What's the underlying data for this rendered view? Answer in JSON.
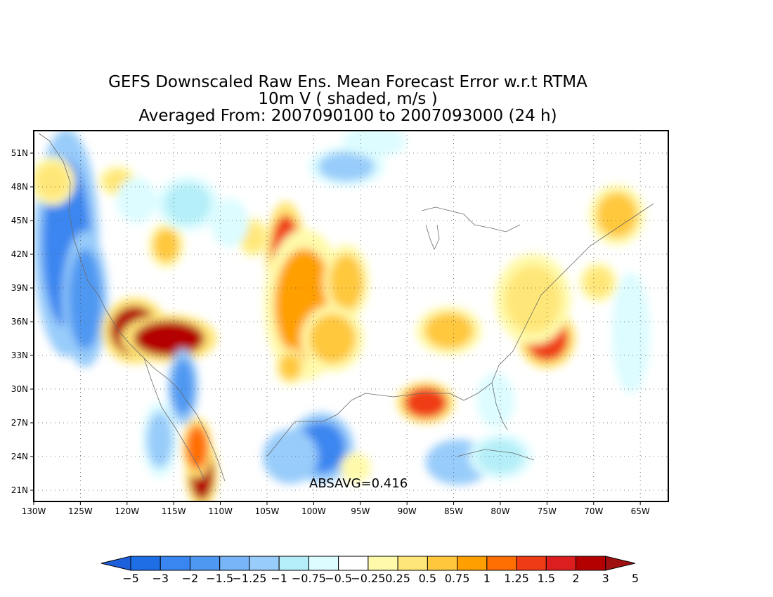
{
  "title": {
    "line1": "GEFS Downscaled Raw Ens. Mean Forecast Error w.r.t RTMA",
    "line2": "10m V ( shaded, m/s )",
    "line3": "Averaged From: 2007090100 to 2007093000 (24 h)"
  },
  "stat_label": "ABSAVG=0.416",
  "chart_data": {
    "type": "heatmap",
    "title": "GEFS Downscaled Raw Ens. Mean Forecast Error w.r.t RTMA",
    "variable": "10m V ( shaded, m/s )",
    "period": "Averaged From: 2007090100 to 2007093000 (24 h)",
    "xlim": [
      -130,
      -62
    ],
    "ylim": [
      20,
      53
    ],
    "grid": true,
    "x_ticks": [
      {
        "lon": -130,
        "label": "130W"
      },
      {
        "lon": -125,
        "label": "125W"
      },
      {
        "lon": -120,
        "label": "120W"
      },
      {
        "lon": -115,
        "label": "115W"
      },
      {
        "lon": -110,
        "label": "110W"
      },
      {
        "lon": -105,
        "label": "105W"
      },
      {
        "lon": -100,
        "label": "100W"
      },
      {
        "lon": -95,
        "label": "95W"
      },
      {
        "lon": -90,
        "label": "90W"
      },
      {
        "lon": -85,
        "label": "85W"
      },
      {
        "lon": -80,
        "label": "80W"
      },
      {
        "lon": -75,
        "label": "75W"
      },
      {
        "lon": -70,
        "label": "70W"
      },
      {
        "lon": -65,
        "label": "65W"
      }
    ],
    "y_ticks": [
      {
        "lat": 21,
        "label": "21N"
      },
      {
        "lat": 24,
        "label": "24N"
      },
      {
        "lat": 27,
        "label": "27N"
      },
      {
        "lat": 30,
        "label": "30N"
      },
      {
        "lat": 33,
        "label": "33N"
      },
      {
        "lat": 36,
        "label": "36N"
      },
      {
        "lat": 39,
        "label": "39N"
      },
      {
        "lat": 42,
        "label": "42N"
      },
      {
        "lat": 45,
        "label": "45N"
      },
      {
        "lat": 48,
        "label": "48N"
      },
      {
        "lat": 51,
        "label": "51N"
      }
    ],
    "colorbar": {
      "levels": [
        "−5",
        "−3",
        "−2",
        "−1.5",
        "−1.25",
        "−1",
        "−0.75",
        "−0.5",
        "−0.25",
        "0.25",
        "0.5",
        "0.75",
        "1",
        "1.25",
        "1.5",
        "2",
        "3",
        "5"
      ],
      "colors": [
        "#1e5fdc",
        "#1e6ee6",
        "#3a86f0",
        "#4f98f2",
        "#78b4f8",
        "#98ccfa",
        "#b4eef8",
        "#dcfcff",
        "#ffffff",
        "#fffaaa",
        "#ffe678",
        "#ffc83c",
        "#ffa000",
        "#ff6e00",
        "#f03c14",
        "#dc1e1e",
        "#b40000",
        "#a01010"
      ]
    },
    "anomalies": [
      {
        "lon": -126.5,
        "lat": 43.0,
        "value": -2.2,
        "rlon": 2.6,
        "rlat": 7.5
      },
      {
        "lon": -124.5,
        "lat": 38.0,
        "value": -1.6,
        "rlon": 1.8,
        "rlat": 4.5
      },
      {
        "lon": -128.0,
        "lat": 48.5,
        "value": 0.7,
        "rlon": 1.8,
        "rlat": 1.6
      },
      {
        "lon": -119.2,
        "lat": 35.2,
        "value": 4.2,
        "rlon": 2.6,
        "rlat": 2.2
      },
      {
        "lon": -115.5,
        "lat": 34.5,
        "value": 3.0,
        "rlon": 3.8,
        "rlat": 1.6
      },
      {
        "lon": -112.0,
        "lat": 22.5,
        "value": 3.0,
        "rlon": 1.3,
        "rlat": 2.4
      },
      {
        "lon": -112.5,
        "lat": 24.8,
        "value": 1.3,
        "rlon": 1.2,
        "rlat": 2.0
      },
      {
        "lon": -114.0,
        "lat": 30.2,
        "value": -1.6,
        "rlon": 1.2,
        "rlat": 2.5
      },
      {
        "lon": -116.5,
        "lat": 25.5,
        "value": -1.0,
        "rlon": 1.4,
        "rlat": 2.5
      },
      {
        "lon": -103.0,
        "lat": 42.0,
        "value": 1.6,
        "rlon": 1.6,
        "rlat": 3.5
      },
      {
        "lon": -101.0,
        "lat": 37.5,
        "value": 1.0,
        "rlon": 3.2,
        "rlat": 5.0
      },
      {
        "lon": -96.5,
        "lat": 39.5,
        "value": 0.9,
        "rlon": 1.8,
        "rlat": 2.5
      },
      {
        "lon": -98.0,
        "lat": 34.5,
        "value": 0.8,
        "rlon": 2.5,
        "rlat": 2.2
      },
      {
        "lon": -99.2,
        "lat": 24.8,
        "value": -2.3,
        "rlon": 2.6,
        "rlat": 2.3
      },
      {
        "lon": -102.5,
        "lat": 24.0,
        "value": -1.2,
        "rlon": 2.2,
        "rlat": 1.8
      },
      {
        "lon": -88.0,
        "lat": 28.8,
        "value": 1.5,
        "rlon": 2.3,
        "rlat": 1.4
      },
      {
        "lon": -75.0,
        "lat": 34.5,
        "value": 1.6,
        "rlon": 2.3,
        "rlat": 2.0
      },
      {
        "lon": -76.5,
        "lat": 38.0,
        "value": 0.5,
        "rlon": 3.0,
        "rlat": 3.0
      },
      {
        "lon": -85.5,
        "lat": 35.2,
        "value": 0.8,
        "rlon": 2.6,
        "rlat": 1.6
      },
      {
        "lon": -67.5,
        "lat": 45.5,
        "value": 0.9,
        "rlon": 2.2,
        "rlat": 2.0
      },
      {
        "lon": -69.5,
        "lat": 39.5,
        "value": 0.7,
        "rlon": 1.5,
        "rlat": 1.3
      },
      {
        "lon": -115.8,
        "lat": 42.8,
        "value": 0.9,
        "rlon": 1.4,
        "rlat": 1.5
      },
      {
        "lon": -106.5,
        "lat": 43.5,
        "value": 0.6,
        "rlon": 1.2,
        "rlat": 1.3
      },
      {
        "lon": -121.0,
        "lat": 48.5,
        "value": 0.5,
        "rlon": 1.5,
        "rlat": 1.0
      },
      {
        "lon": -96.5,
        "lat": 49.8,
        "value": -1.0,
        "rlon": 3.0,
        "rlat": 1.3
      },
      {
        "lon": -93.5,
        "lat": 52.0,
        "value": -0.4,
        "rlon": 2.5,
        "rlat": 1.0
      },
      {
        "lon": -113.5,
        "lat": 46.5,
        "value": -0.8,
        "rlon": 2.5,
        "rlat": 1.8
      },
      {
        "lon": -119.0,
        "lat": 46.8,
        "value": -0.7,
        "rlon": 1.6,
        "rlat": 1.5
      },
      {
        "lon": -109.0,
        "lat": 44.8,
        "value": -0.6,
        "rlon": 1.5,
        "rlat": 1.6
      },
      {
        "lon": -84.5,
        "lat": 23.5,
        "value": -1.1,
        "rlon": 2.6,
        "rlat": 1.5
      },
      {
        "lon": -80.0,
        "lat": 24.0,
        "value": -0.9,
        "rlon": 2.5,
        "rlat": 1.5
      },
      {
        "lon": -80.5,
        "lat": 29.0,
        "value": -0.6,
        "rlon": 1.5,
        "rlat": 1.8
      },
      {
        "lon": -66.0,
        "lat": 35.0,
        "value": -0.5,
        "rlon": 1.5,
        "rlat": 4.0
      },
      {
        "lon": -102.5,
        "lat": 32.0,
        "value": 0.8,
        "rlon": 1.2,
        "rlat": 1.2
      },
      {
        "lon": -95.5,
        "lat": 23.0,
        "value": 0.3,
        "rlon": 1.2,
        "rlat": 1.0
      }
    ]
  }
}
